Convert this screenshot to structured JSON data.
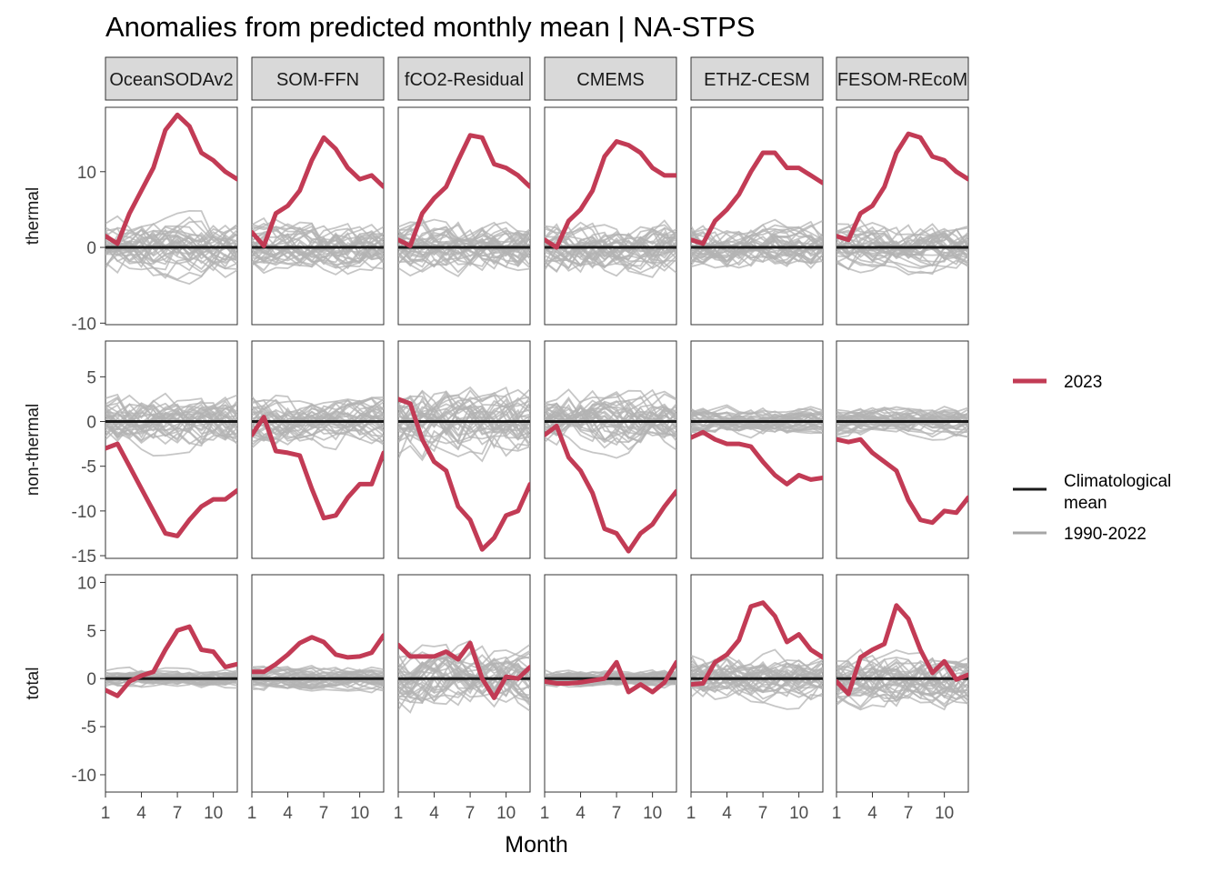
{
  "chart_data": {
    "type": "line",
    "title": "Anomalies from predicted monthly mean | NA-STPS",
    "xlabel": "Month",
    "ylabel": "",
    "x": [
      1,
      2,
      3,
      4,
      5,
      6,
      7,
      8,
      9,
      10,
      11,
      12
    ],
    "x_ticks": [
      1,
      4,
      7,
      10
    ],
    "xlim": [
      1,
      12
    ],
    "grid": false,
    "legend_position": "right",
    "products": [
      "OceanSODAv2",
      "SOM-FFN",
      "fCO2-Residual",
      "CMEMS",
      "ETHZ-CESM",
      "FESOM-REcoM"
    ],
    "rows": [
      {
        "name": "thermal",
        "ylim": [
          -10.2,
          18.5
        ],
        "y_ticks": [
          -10,
          0,
          10
        ]
      },
      {
        "name": "non-thermal",
        "ylim": [
          -15.3,
          9.0
        ],
        "y_ticks": [
          -15,
          -10,
          -5,
          0,
          5
        ]
      },
      {
        "name": "total",
        "ylim": [
          -11.8,
          10.8
        ],
        "y_ticks": [
          -10,
          -5,
          0,
          5,
          10
        ]
      }
    ],
    "series_2023": {
      "thermal": {
        "OceanSODAv2": [
          1.5,
          0.5,
          4.5,
          7.5,
          10.5,
          15.5,
          17.5,
          16.0,
          12.5,
          11.5,
          10.0,
          9.0
        ],
        "SOM-FFN": [
          2.0,
          0.2,
          4.5,
          5.5,
          7.5,
          11.5,
          14.5,
          13.0,
          10.5,
          9.0,
          9.5,
          8.0
        ],
        "fCO2-Residual": [
          1.0,
          0.2,
          4.5,
          6.5,
          8.0,
          11.5,
          14.8,
          14.5,
          11.0,
          10.5,
          9.5,
          8.0
        ],
        "CMEMS": [
          1.0,
          0.0,
          3.5,
          5.0,
          7.5,
          12.0,
          14.0,
          13.5,
          12.5,
          10.5,
          9.5,
          9.5
        ],
        "ETHZ-CESM": [
          1.0,
          0.5,
          3.5,
          5.0,
          7.0,
          10.0,
          12.5,
          12.5,
          10.5,
          10.5,
          9.5,
          8.5
        ],
        "FESOM-REcoM": [
          1.5,
          1.0,
          4.5,
          5.5,
          8.0,
          12.5,
          15.0,
          14.5,
          12.0,
          11.5,
          10.0,
          9.0
        ]
      },
      "non-thermal": {
        "OceanSODAv2": [
          -3.0,
          -2.5,
          -5.0,
          -7.5,
          -10.0,
          -12.5,
          -12.8,
          -11.0,
          -9.5,
          -8.7,
          -8.7,
          -7.7
        ],
        "SOM-FFN": [
          -1.5,
          0.5,
          -3.3,
          -3.5,
          -3.8,
          -7.5,
          -10.8,
          -10.5,
          -8.5,
          -7.0,
          -7.0,
          -3.5
        ],
        "fCO2-Residual": [
          2.5,
          2.0,
          -2.0,
          -4.5,
          -5.5,
          -9.5,
          -11.0,
          -14.3,
          -13.0,
          -10.5,
          -10.0,
          -7.0
        ],
        "CMEMS": [
          -1.5,
          -0.5,
          -4.0,
          -5.5,
          -8.0,
          -12.0,
          -12.5,
          -14.5,
          -12.5,
          -11.5,
          -9.5,
          -7.8
        ],
        "ETHZ-CESM": [
          -1.8,
          -1.2,
          -2.0,
          -2.5,
          -2.5,
          -2.8,
          -4.5,
          -6.0,
          -7.0,
          -6.0,
          -6.5,
          -6.3
        ],
        "FESOM-REcoM": [
          -2.0,
          -2.3,
          -2.0,
          -3.5,
          -4.5,
          -5.5,
          -8.8,
          -11.0,
          -11.3,
          -10.0,
          -10.2,
          -8.5
        ]
      },
      "total": {
        "OceanSODAv2": [
          -1.2,
          -1.8,
          -0.3,
          0.3,
          0.7,
          3.0,
          5.0,
          5.4,
          3.0,
          2.8,
          1.2,
          1.5
        ],
        "SOM-FFN": [
          0.7,
          0.7,
          1.5,
          2.5,
          3.7,
          4.3,
          3.8,
          2.5,
          2.2,
          2.3,
          2.7,
          4.5
        ],
        "fCO2-Residual": [
          3.5,
          2.3,
          2.3,
          2.3,
          2.8,
          2.0,
          3.7,
          0.0,
          -2.0,
          0.2,
          0.0,
          1.2
        ],
        "CMEMS": [
          -0.3,
          -0.5,
          -0.5,
          -0.4,
          -0.2,
          0.0,
          1.7,
          -1.4,
          -0.6,
          -1.4,
          -0.4,
          1.7
        ],
        "ETHZ-CESM": [
          -0.6,
          -0.5,
          1.7,
          2.5,
          4.0,
          7.5,
          7.9,
          6.5,
          3.8,
          4.6,
          3.0,
          2.2
        ],
        "FESOM-REcoM": [
          -0.3,
          -1.6,
          2.2,
          3.0,
          3.6,
          7.6,
          6.2,
          3.0,
          0.6,
          1.8,
          -0.1,
          0.4
        ]
      }
    },
    "climatological_mean": 0,
    "historical_range": "1990-2022",
    "historical_spread": {
      "thermal": {
        "OceanSODAv2": 4.0,
        "SOM-FFN": 3.6,
        "fCO2-Residual": 3.8,
        "CMEMS": 3.8,
        "ETHZ-CESM": 3.2,
        "FESOM-REcoM": 3.4
      },
      "non-thermal": {
        "OceanSODAv2": 3.2,
        "SOM-FFN": 3.0,
        "fCO2-Residual": 4.2,
        "CMEMS": 3.4,
        "ETHZ-CESM": 1.6,
        "FESOM-REcoM": 1.7
      },
      "total": {
        "OceanSODAv2": 1.0,
        "SOM-FFN": 1.3,
        "fCO2-Residual": 3.6,
        "CMEMS": 0.9,
        "ETHZ-CESM": 2.6,
        "FESOM-REcoM": 3.0
      }
    },
    "legend": [
      {
        "label": "2023",
        "color": "#c23b55",
        "group": "year"
      },
      {
        "label": "Climatological mean",
        "color": "#1a1a1a",
        "group": "reference"
      },
      {
        "label": "1990-2022",
        "color": "#a6a6a6",
        "group": "reference"
      }
    ],
    "colors": {
      "y2023": "#c23b55",
      "climatology": "#1a1a1a",
      "historical": "#b3b3b3"
    }
  }
}
